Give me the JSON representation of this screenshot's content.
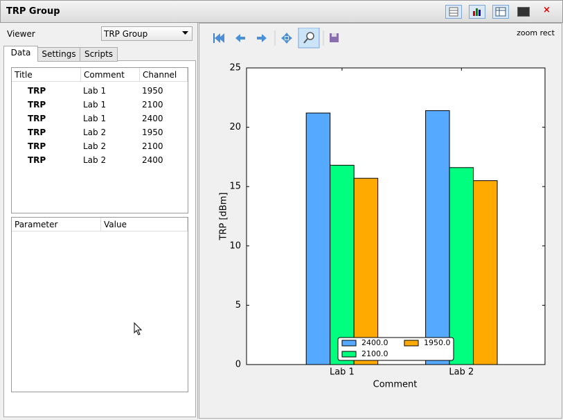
{
  "window": {
    "title": "TRP Group"
  },
  "viewer": {
    "label": "Viewer",
    "selected": "TRP Group"
  },
  "tabs": [
    "Data",
    "Settings",
    "Scripts"
  ],
  "data_table": {
    "headers": [
      "Title",
      "Comment",
      "Channel"
    ],
    "rows": [
      [
        "TRP",
        "Lab 1",
        1950
      ],
      [
        "TRP",
        "Lab 1",
        2100
      ],
      [
        "TRP",
        "Lab 1",
        2400
      ],
      [
        "TRP",
        "Lab 2",
        1950
      ],
      [
        "TRP",
        "Lab 2",
        2100
      ],
      [
        "TRP",
        "Lab 2",
        2400
      ]
    ]
  },
  "param_table": {
    "headers": [
      "Parameter",
      "Value"
    ]
  },
  "toolbar": {
    "mode": "zoom rect"
  },
  "chart_data": {
    "type": "bar",
    "xlabel": "Comment",
    "ylabel": "TRP [dBm]",
    "categories": [
      "Lab 1",
      "Lab 2"
    ],
    "series": [
      {
        "name": "2400.0",
        "color": "#55aaff",
        "values": [
          21.2,
          21.4
        ]
      },
      {
        "name": "2100.0",
        "color": "#00ff7f",
        "values": [
          16.8,
          16.6
        ]
      },
      {
        "name": "1950.0",
        "color": "#ffaa00",
        "values": [
          15.7,
          15.5
        ]
      }
    ],
    "ylim": [
      0,
      25
    ],
    "yticks": [
      0,
      5,
      10,
      15,
      20,
      25
    ],
    "legend": "lower center",
    "legend_columns": 2
  }
}
